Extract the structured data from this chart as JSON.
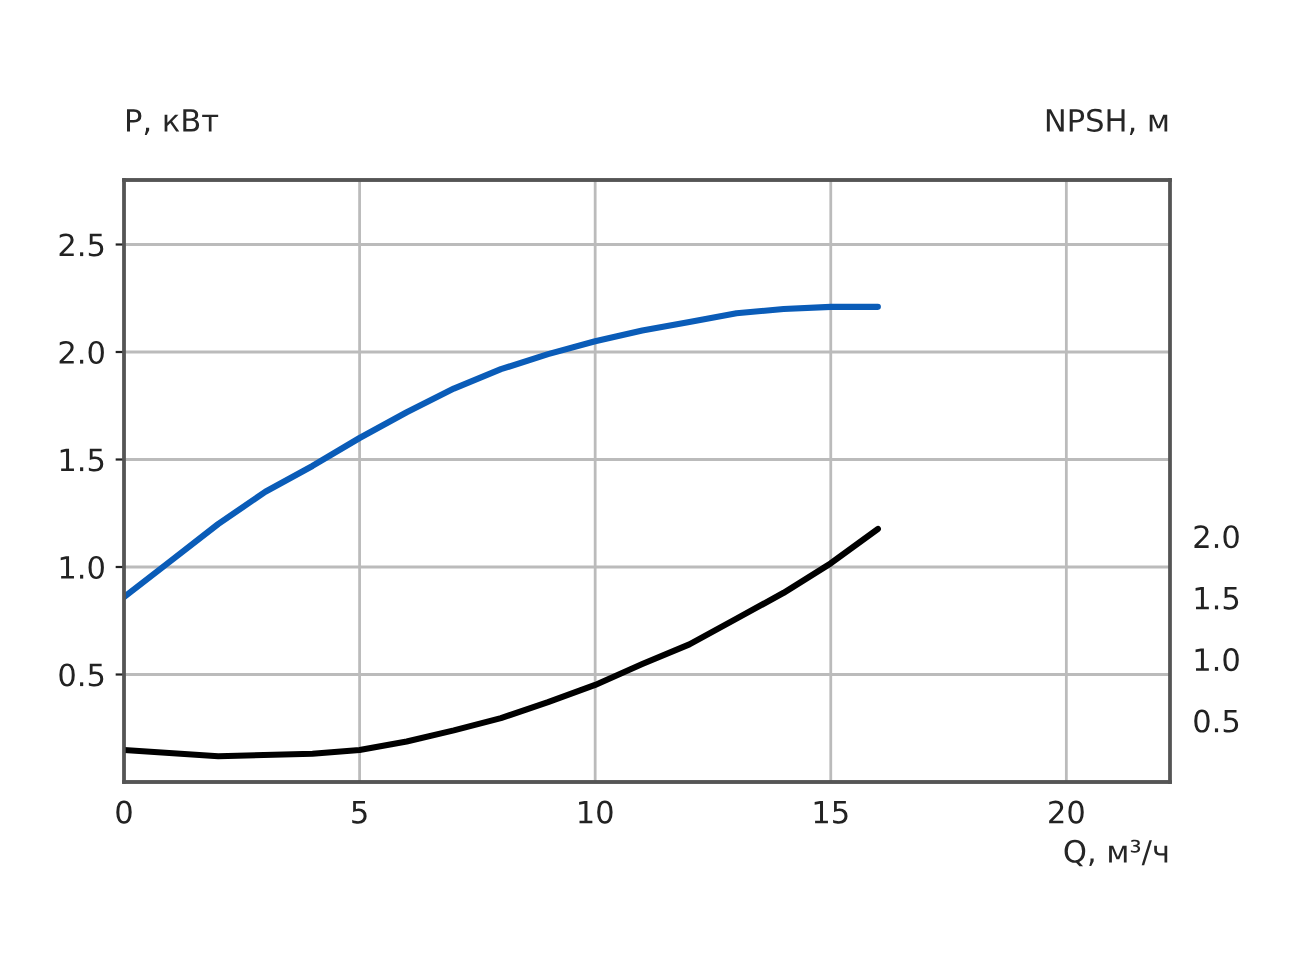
{
  "chart_data": {
    "type": "line",
    "xlabel": "Q, м³/ч",
    "ylabel": "P, кВт",
    "y2label": "NPSH, м",
    "xlim": [
      0,
      22.2
    ],
    "xticks": [
      0,
      5,
      10,
      15,
      20
    ],
    "ylim": [
      0,
      2.8
    ],
    "yticks": [
      {
        "value": 0.5,
        "label": "0.5"
      },
      {
        "value": 1.0,
        "label": "1.0"
      },
      {
        "value": 1.5,
        "label": "1.5"
      },
      {
        "value": 2.0,
        "label": "2.0"
      },
      {
        "value": 2.5,
        "label": "2.5"
      }
    ],
    "y2lim": [
      0,
      4.9
    ],
    "y2ticks": [
      {
        "value": 0.5,
        "label": "0.5"
      },
      {
        "value": 1.0,
        "label": "1.0"
      },
      {
        "value": 1.5,
        "label": "1.5"
      },
      {
        "value": 2.0,
        "label": "2.0"
      }
    ],
    "grid": true,
    "marker": "none",
    "line_style": "solid",
    "series": [
      {
        "color": "#0a5cb8",
        "x": [
          0,
          1,
          2,
          3,
          4,
          5,
          6,
          7,
          8,
          9,
          10,
          11,
          12,
          13,
          14,
          15,
          16
        ],
        "values": [
          0.86,
          1.03,
          1.2,
          1.35,
          1.47,
          1.6,
          1.72,
          1.83,
          1.92,
          1.99,
          2.05,
          2.1,
          2.14,
          2.18,
          2.2,
          2.21,
          2.21
        ]
      },
      {
        "color": "#000000",
        "axis": "y2",
        "x": [
          0,
          2,
          4,
          5,
          6,
          7,
          8,
          9,
          10,
          11,
          12,
          13,
          14,
          15,
          16
        ],
        "values": [
          0.26,
          0.21,
          0.23,
          0.26,
          0.33,
          0.42,
          0.52,
          0.65,
          0.79,
          0.96,
          1.12,
          1.33,
          1.54,
          1.78,
          2.06
        ]
      }
    ]
  }
}
